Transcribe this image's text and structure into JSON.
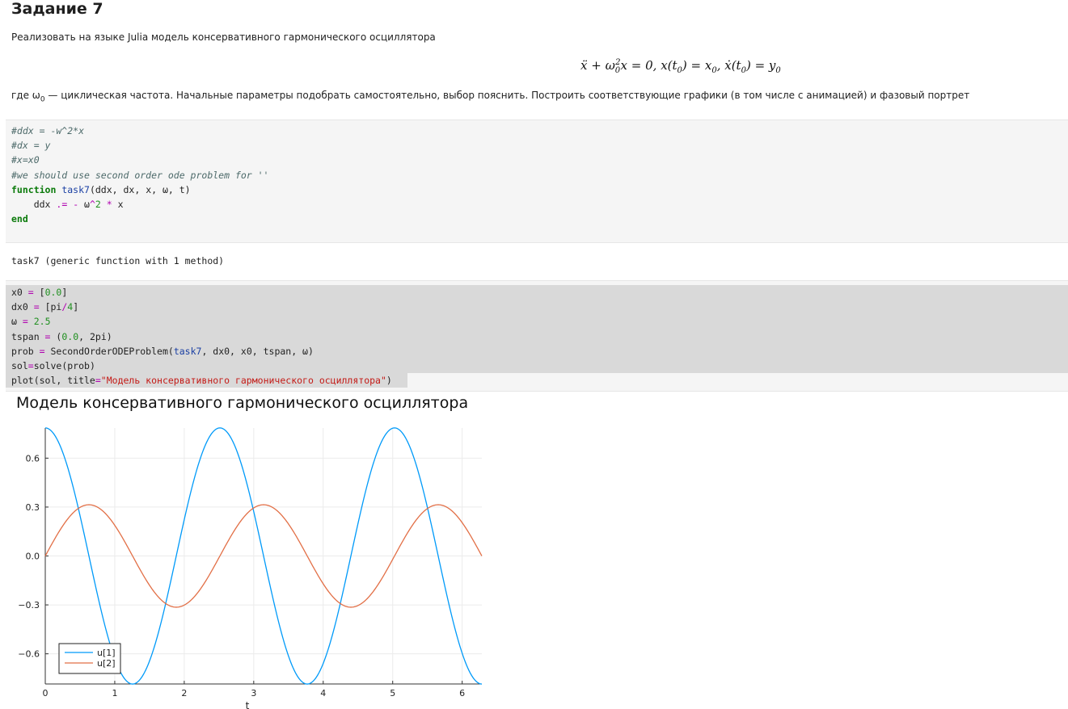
{
  "heading": "Задание 7",
  "intro": "Реализовать на языке Julia модель консервативного гармонического осциллятора",
  "equation": {
    "parts": [
      "ẍ + ω",
      "0",
      "2",
      "x = 0, x(t",
      "0",
      ") = x",
      "0",
      ", ẋ(t",
      "0",
      ") = y",
      "0"
    ]
  },
  "description": {
    "prefix": "где ω",
    "sub": "0",
    "rest": " — циклическая частота. Начальные параметры подобрать самостоятельно, выбор пояснить. Построить соответствующие графики (в том числе с анимацией) и фазовый портрет"
  },
  "cell1": {
    "lines": [
      "#ddx = -w^2*x",
      "#dx = y",
      "#x=x0",
      "#we should use second order ode problem for ''",
      "function task7(ddx, dx, x, ω, t)",
      "    ddx .= - ω^2 * x",
      "end"
    ]
  },
  "output1": "task7 (generic function with 1 method)",
  "cell2": {
    "lines": [
      "x0 = [0.0]",
      "dx0 = [pi/4]",
      "ω = 2.5",
      "tspan = (0.0, 2pi)",
      "prob = SecondOrderODEProblem(task7, dx0, x0, tspan, ω)",
      "sol=solve(prob)",
      "plot(sol, title=\"Модель консервативного гармонического осциллятора\")"
    ]
  },
  "chart_data": {
    "type": "line",
    "title": "Модель консервативного гармонического осциллятора",
    "xlabel": "t",
    "ylabel": "",
    "xlim": [
      0,
      6.2832
    ],
    "ylim": [
      -0.785,
      0.785
    ],
    "xticks": [
      "0",
      "1",
      "2",
      "3",
      "4",
      "5",
      "6"
    ],
    "yticks": [
      "0.6",
      "0.3",
      "0.0",
      "−0.3",
      "−0.6"
    ],
    "grid": true,
    "legend_position": "bottom-left",
    "series": [
      {
        "name": "u[1]",
        "color": "#009af9",
        "amplitude": 0.7854,
        "omega": 2.5,
        "kind": "cos"
      },
      {
        "name": "u[2]",
        "color": "#e26f46",
        "amplitude": 0.31416,
        "omega": 2.5,
        "kind": "sin"
      }
    ]
  }
}
